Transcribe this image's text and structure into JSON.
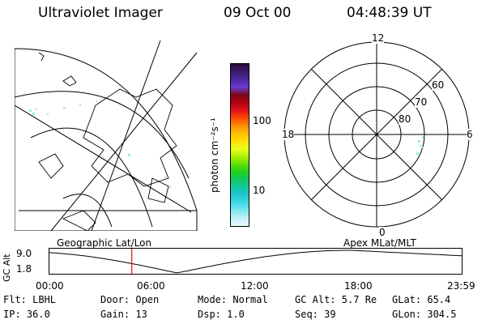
{
  "header": {
    "instrument": "Ultraviolet Imager",
    "date": "09 Oct 00",
    "time": "04:48:39 UT"
  },
  "colorbar": {
    "unit_label": "photon cm⁻²s⁻¹",
    "ticks": [
      "100",
      "10"
    ],
    "colors": [
      "#2c0a3a",
      "#3a1a6a",
      "#4a2aa0",
      "#6a3ad0",
      "#7a0a1a",
      "#b00010",
      "#e0101a",
      "#ff4a00",
      "#ff8c00",
      "#ffbf00",
      "#ffe000",
      "#e8ff20",
      "#b0f000",
      "#60e000",
      "#20d020",
      "#10c860",
      "#10c8a0",
      "#20c8d0",
      "#40d8e8",
      "#80e8f0",
      "#c0f0f8",
      "#e8fbff"
    ]
  },
  "polar": {
    "labels": {
      "top": "12",
      "left": "18",
      "right": "6",
      "bottom": "0"
    },
    "rings": [
      "60",
      "70",
      "80"
    ]
  },
  "footer_labels": {
    "geo": "Geographic Lat/Lon",
    "apex": "Apex MLat/MLT"
  },
  "altitude_plot": {
    "axis_label": "GC Alt",
    "y_top": "9.0",
    "y_bottom": "1.8",
    "time_ticks": [
      "00:00",
      "06:00",
      "12:00",
      "18:00",
      "23:59"
    ],
    "current_time_marker_hours": 4.81
  },
  "status": {
    "row1": {
      "flt": "Flt: LBHL",
      "door": "Door: Open",
      "mode": "Mode: Normal",
      "gcalt": "GC Alt: 5.7 Re",
      "glat": "GLat:  65.4"
    },
    "row2": {
      "ip": "IP: 36.0",
      "gain": "Gain: 13",
      "dsp": "Dsp:    1.0",
      "seq": "Seq: 39",
      "glon": "GLon: 304.5"
    }
  }
}
